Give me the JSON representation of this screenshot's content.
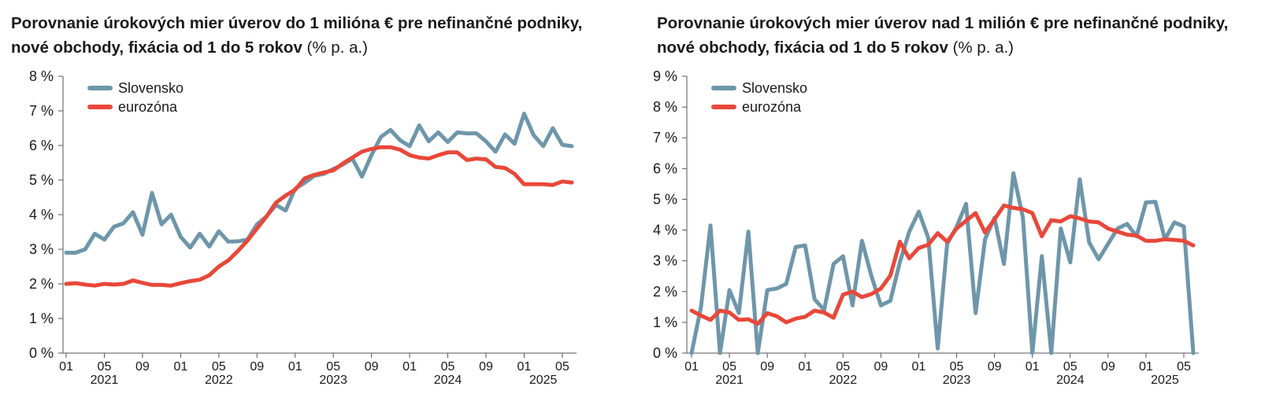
{
  "chart_data": [
    {
      "type": "line",
      "title": "Porovnanie úrokových mier úverov do 1 milióna € pre nefinančné podniky, nové obchody, fixácia od 1 do 5 rokov",
      "unit_label": "(% p. a.)",
      "ylim": [
        0,
        8
      ],
      "yticks": [
        0,
        1,
        2,
        3,
        4,
        5,
        6,
        7,
        8
      ],
      "ytick_labels": [
        "0 %",
        "1 %",
        "2 %",
        "3 %",
        "4 %",
        "5 %",
        "6 %",
        "7 %",
        "8 %"
      ],
      "x_month_ticks": [
        {
          "index": 0,
          "label": "01"
        },
        {
          "index": 4,
          "label": "05"
        },
        {
          "index": 8,
          "label": "09"
        },
        {
          "index": 12,
          "label": "01"
        },
        {
          "index": 16,
          "label": "05"
        },
        {
          "index": 20,
          "label": "09"
        },
        {
          "index": 24,
          "label": "01"
        },
        {
          "index": 28,
          "label": "05"
        },
        {
          "index": 32,
          "label": "09"
        },
        {
          "index": 36,
          "label": "01"
        },
        {
          "index": 40,
          "label": "05"
        },
        {
          "index": 44,
          "label": "09"
        },
        {
          "index": 48,
          "label": "01"
        },
        {
          "index": 52,
          "label": "05"
        }
      ],
      "x_year_labels": [
        {
          "index": 4,
          "label": "2021"
        },
        {
          "index": 16,
          "label": "2022"
        },
        {
          "index": 28,
          "label": "2023"
        },
        {
          "index": 40,
          "label": "2024"
        },
        {
          "index": 50,
          "label": "2025"
        }
      ],
      "series": [
        {
          "name": "Slovensko",
          "color": "#6e96aa",
          "values": [
            2.9,
            2.9,
            3.0,
            3.45,
            3.28,
            3.65,
            3.75,
            4.07,
            3.42,
            4.63,
            3.72,
            4.0,
            3.36,
            3.05,
            3.45,
            3.08,
            3.52,
            3.22,
            3.23,
            3.28,
            3.72,
            3.95,
            4.28,
            4.12,
            4.75,
            4.92,
            5.12,
            5.18,
            5.32,
            5.45,
            5.62,
            5.1,
            5.72,
            6.25,
            6.45,
            6.15,
            5.98,
            6.58,
            6.12,
            6.38,
            6.1,
            6.38,
            6.35,
            6.35,
            6.12,
            5.82,
            6.32,
            6.05,
            6.92,
            6.3,
            5.98,
            6.5,
            6.02,
            5.98
          ]
        },
        {
          "name": "eurozóna",
          "color": "#e8483a",
          "values": [
            2.0,
            2.02,
            1.98,
            1.95,
            2.0,
            1.98,
            2.0,
            2.1,
            2.03,
            1.97,
            1.97,
            1.95,
            2.02,
            2.08,
            2.12,
            2.25,
            2.5,
            2.68,
            2.95,
            3.25,
            3.6,
            3.95,
            4.35,
            4.55,
            4.72,
            5.05,
            5.15,
            5.22,
            5.28,
            5.48,
            5.65,
            5.82,
            5.9,
            5.95,
            5.95,
            5.88,
            5.72,
            5.65,
            5.62,
            5.72,
            5.8,
            5.8,
            5.58,
            5.62,
            5.6,
            5.38,
            5.35,
            5.18,
            4.88,
            4.88,
            4.88,
            4.86,
            4.96,
            4.93
          ]
        }
      ]
    },
    {
      "type": "line",
      "title": "Porovnanie úrokových mier úverov nad 1 milión € pre nefinančné podniky, nové obchody, fixácia od 1 do 5 rokov",
      "unit_label": "(% p. a.)",
      "ylim": [
        0,
        9
      ],
      "yticks": [
        0,
        1,
        2,
        3,
        4,
        5,
        6,
        7,
        8,
        9
      ],
      "ytick_labels": [
        "0 %",
        "1 %",
        "2 %",
        "3 %",
        "4 %",
        "5 %",
        "6 %",
        "7 %",
        "8 %",
        "9 %"
      ],
      "x_month_ticks": [
        {
          "index": 0,
          "label": "01"
        },
        {
          "index": 4,
          "label": "05"
        },
        {
          "index": 8,
          "label": "09"
        },
        {
          "index": 12,
          "label": "01"
        },
        {
          "index": 16,
          "label": "05"
        },
        {
          "index": 20,
          "label": "09"
        },
        {
          "index": 24,
          "label": "01"
        },
        {
          "index": 28,
          "label": "05"
        },
        {
          "index": 32,
          "label": "09"
        },
        {
          "index": 36,
          "label": "01"
        },
        {
          "index": 40,
          "label": "05"
        },
        {
          "index": 44,
          "label": "09"
        },
        {
          "index": 48,
          "label": "01"
        },
        {
          "index": 52,
          "label": "05"
        }
      ],
      "x_year_labels": [
        {
          "index": 4,
          "label": "2021"
        },
        {
          "index": 16,
          "label": "2022"
        },
        {
          "index": 28,
          "label": "2023"
        },
        {
          "index": 40,
          "label": "2024"
        },
        {
          "index": 50,
          "label": "2025"
        }
      ],
      "series": [
        {
          "name": "Slovensko",
          "color": "#6e96aa",
          "values": [
            0.0,
            1.5,
            4.15,
            0.0,
            2.05,
            1.3,
            3.95,
            0.0,
            2.05,
            2.1,
            2.25,
            3.45,
            3.5,
            1.75,
            1.4,
            2.9,
            3.15,
            1.55,
            3.65,
            2.5,
            1.55,
            1.7,
            2.95,
            3.95,
            4.6,
            3.75,
            0.15,
            3.55,
            4.1,
            4.85,
            1.3,
            3.7,
            4.4,
            2.9,
            5.85,
            4.4,
            0.0,
            3.15,
            0.0,
            4.05,
            2.95,
            5.65,
            3.6,
            3.05,
            3.55,
            4.05,
            4.2,
            3.8,
            4.9,
            4.92,
            3.7,
            4.25,
            4.12,
            0.0
          ]
        },
        {
          "name": "eurozóna",
          "color": "#e8483a",
          "values": [
            1.38,
            1.22,
            1.08,
            1.38,
            1.32,
            1.08,
            1.1,
            0.95,
            1.3,
            1.2,
            1.0,
            1.12,
            1.18,
            1.38,
            1.32,
            1.15,
            1.9,
            2.0,
            1.82,
            1.92,
            2.1,
            2.52,
            3.62,
            3.08,
            3.42,
            3.52,
            3.9,
            3.62,
            4.05,
            4.3,
            4.55,
            3.92,
            4.35,
            4.8,
            4.72,
            4.68,
            4.55,
            3.8,
            4.32,
            4.28,
            4.45,
            4.38,
            4.28,
            4.25,
            4.05,
            3.95,
            3.85,
            3.82,
            3.65,
            3.65,
            3.7,
            3.68,
            3.65,
            3.5
          ]
        }
      ]
    }
  ]
}
